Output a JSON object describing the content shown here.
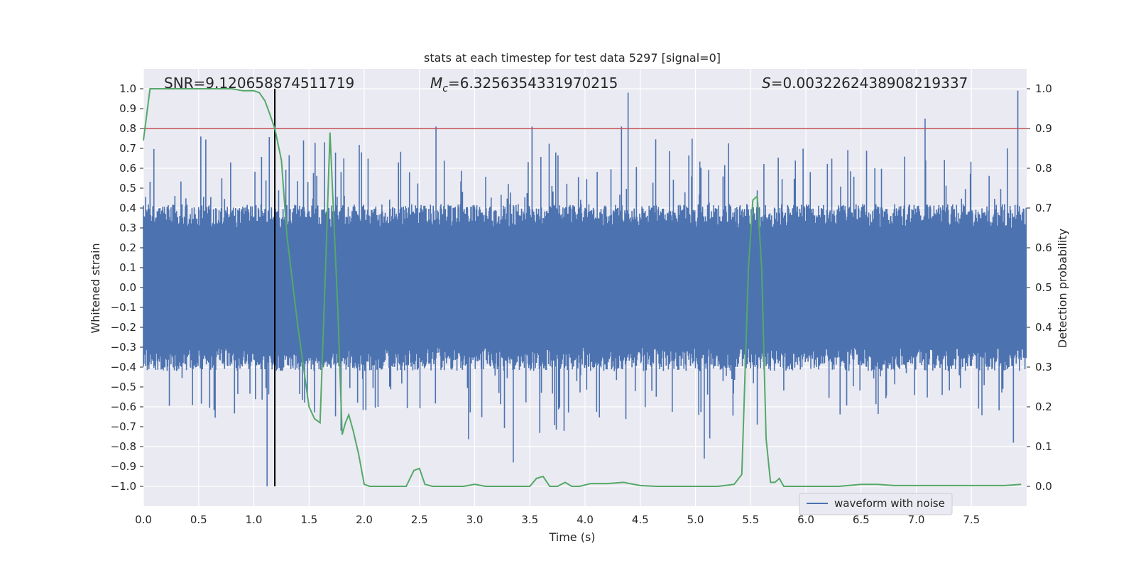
{
  "chart_data": {
    "type": "line",
    "title": "stats at each timestep for test data 5297 [signal=0]",
    "xlabel": "Time (s)",
    "ylabel": "Whitened strain",
    "ylabel_right": "Detection probability",
    "xlim": [
      0.0,
      8.0
    ],
    "ylim": [
      -1.1,
      1.1
    ],
    "ylim_right": [
      -0.05,
      1.05
    ],
    "x_ticks": [
      "0.0",
      "0.5",
      "1.0",
      "1.5",
      "2.0",
      "2.5",
      "3.0",
      "3.5",
      "4.0",
      "4.5",
      "5.0",
      "5.5",
      "6.0",
      "6.5",
      "7.0",
      "7.5"
    ],
    "y_ticks": [
      "1.0",
      "0.9",
      "0.8",
      "0.7",
      "0.6",
      "0.5",
      "0.4",
      "0.3",
      "0.2",
      "0.1",
      "0.0",
      "−0.1",
      "−0.2",
      "−0.3",
      "−0.4",
      "−0.5",
      "−0.6",
      "−0.7",
      "−0.8",
      "−0.9",
      "−1.0"
    ],
    "y_ticks_right": [
      "1.0",
      "0.9",
      "0.8",
      "0.7",
      "0.6",
      "0.5",
      "0.4",
      "0.3",
      "0.2",
      "0.1",
      "0.0"
    ],
    "annotations": {
      "snr": "SNR=9.120658874511719",
      "mc_symbol": "M",
      "mc_sub": "c",
      "mc_value": "=6.3256354331970215",
      "s_symbol": "S",
      "s_value": "=0.0032262438908219337"
    },
    "legend": {
      "label": "waveform with noise",
      "position": "lower-right"
    },
    "threshold_line": {
      "value": 0.9,
      "axis": "right",
      "color": "#c44e52"
    },
    "marker_line": {
      "x": 1.19,
      "color": "#000000"
    },
    "series": [
      {
        "name": "waveform with noise",
        "axis": "left",
        "color": "#4c72b0",
        "sample_count": 1600,
        "envelope_typical": 0.35,
        "notable_spikes": [
          {
            "x": 0.52,
            "y": 0.76
          },
          {
            "x": 1.12,
            "y": -1.0
          },
          {
            "x": 1.45,
            "y": 0.74
          },
          {
            "x": 2.65,
            "y": 0.81
          },
          {
            "x": 3.35,
            "y": -0.88
          },
          {
            "x": 3.52,
            "y": 0.81
          },
          {
            "x": 4.39,
            "y": 0.98
          },
          {
            "x": 4.33,
            "y": 0.81
          },
          {
            "x": 5.08,
            "y": -0.86
          },
          {
            "x": 7.08,
            "y": 0.85
          },
          {
            "x": 7.92,
            "y": 0.99
          },
          {
            "x": 7.88,
            "y": -0.78
          }
        ]
      },
      {
        "name": "detection probability",
        "axis": "right",
        "color": "#55a868",
        "x": [
          0.0,
          0.06,
          0.1,
          0.2,
          0.4,
          0.6,
          0.8,
          0.9,
          1.0,
          1.05,
          1.1,
          1.14,
          1.19,
          1.25,
          1.3,
          1.4,
          1.5,
          1.55,
          1.6,
          1.65,
          1.69,
          1.72,
          1.76,
          1.8,
          1.83,
          1.86,
          1.9,
          1.95,
          2.0,
          2.05,
          2.1,
          2.2,
          2.3,
          2.38,
          2.45,
          2.5,
          2.55,
          2.62,
          2.7,
          2.8,
          2.9,
          3.0,
          3.1,
          3.2,
          3.3,
          3.4,
          3.5,
          3.56,
          3.62,
          3.68,
          3.75,
          3.82,
          3.88,
          3.95,
          4.05,
          4.2,
          4.35,
          4.5,
          4.65,
          4.8,
          5.0,
          5.2,
          5.35,
          5.42,
          5.48,
          5.52,
          5.56,
          5.6,
          5.64,
          5.68,
          5.72,
          5.76,
          5.8,
          5.86,
          5.92,
          6.1,
          6.3,
          6.5,
          6.65,
          6.8,
          7.0,
          7.2,
          7.4,
          7.6,
          7.8,
          7.95
        ],
        "y": [
          0.87,
          1.0,
          1.0,
          1.0,
          1.0,
          1.0,
          1.0,
          0.995,
          0.995,
          0.99,
          0.97,
          0.94,
          0.9,
          0.82,
          0.63,
          0.4,
          0.2,
          0.17,
          0.16,
          0.55,
          0.89,
          0.7,
          0.45,
          0.13,
          0.16,
          0.18,
          0.14,
          0.08,
          0.005,
          0.0,
          0.0,
          0.0,
          0.0,
          0.0,
          0.04,
          0.045,
          0.005,
          0.0,
          0.0,
          0.0,
          0.0,
          0.005,
          0.0,
          0.0,
          0.0,
          0.0,
          0.0,
          0.02,
          0.025,
          0.0,
          0.0,
          0.01,
          0.0,
          0.0,
          0.007,
          0.007,
          0.01,
          0.002,
          0.0,
          0.0,
          0.0,
          0.0,
          0.005,
          0.03,
          0.55,
          0.72,
          0.73,
          0.55,
          0.12,
          0.01,
          0.01,
          0.02,
          0.0,
          0.0,
          0.0,
          0.0,
          0.0,
          0.005,
          0.005,
          0.002,
          0.002,
          0.002,
          0.002,
          0.002,
          0.002,
          0.005
        ]
      }
    ]
  }
}
